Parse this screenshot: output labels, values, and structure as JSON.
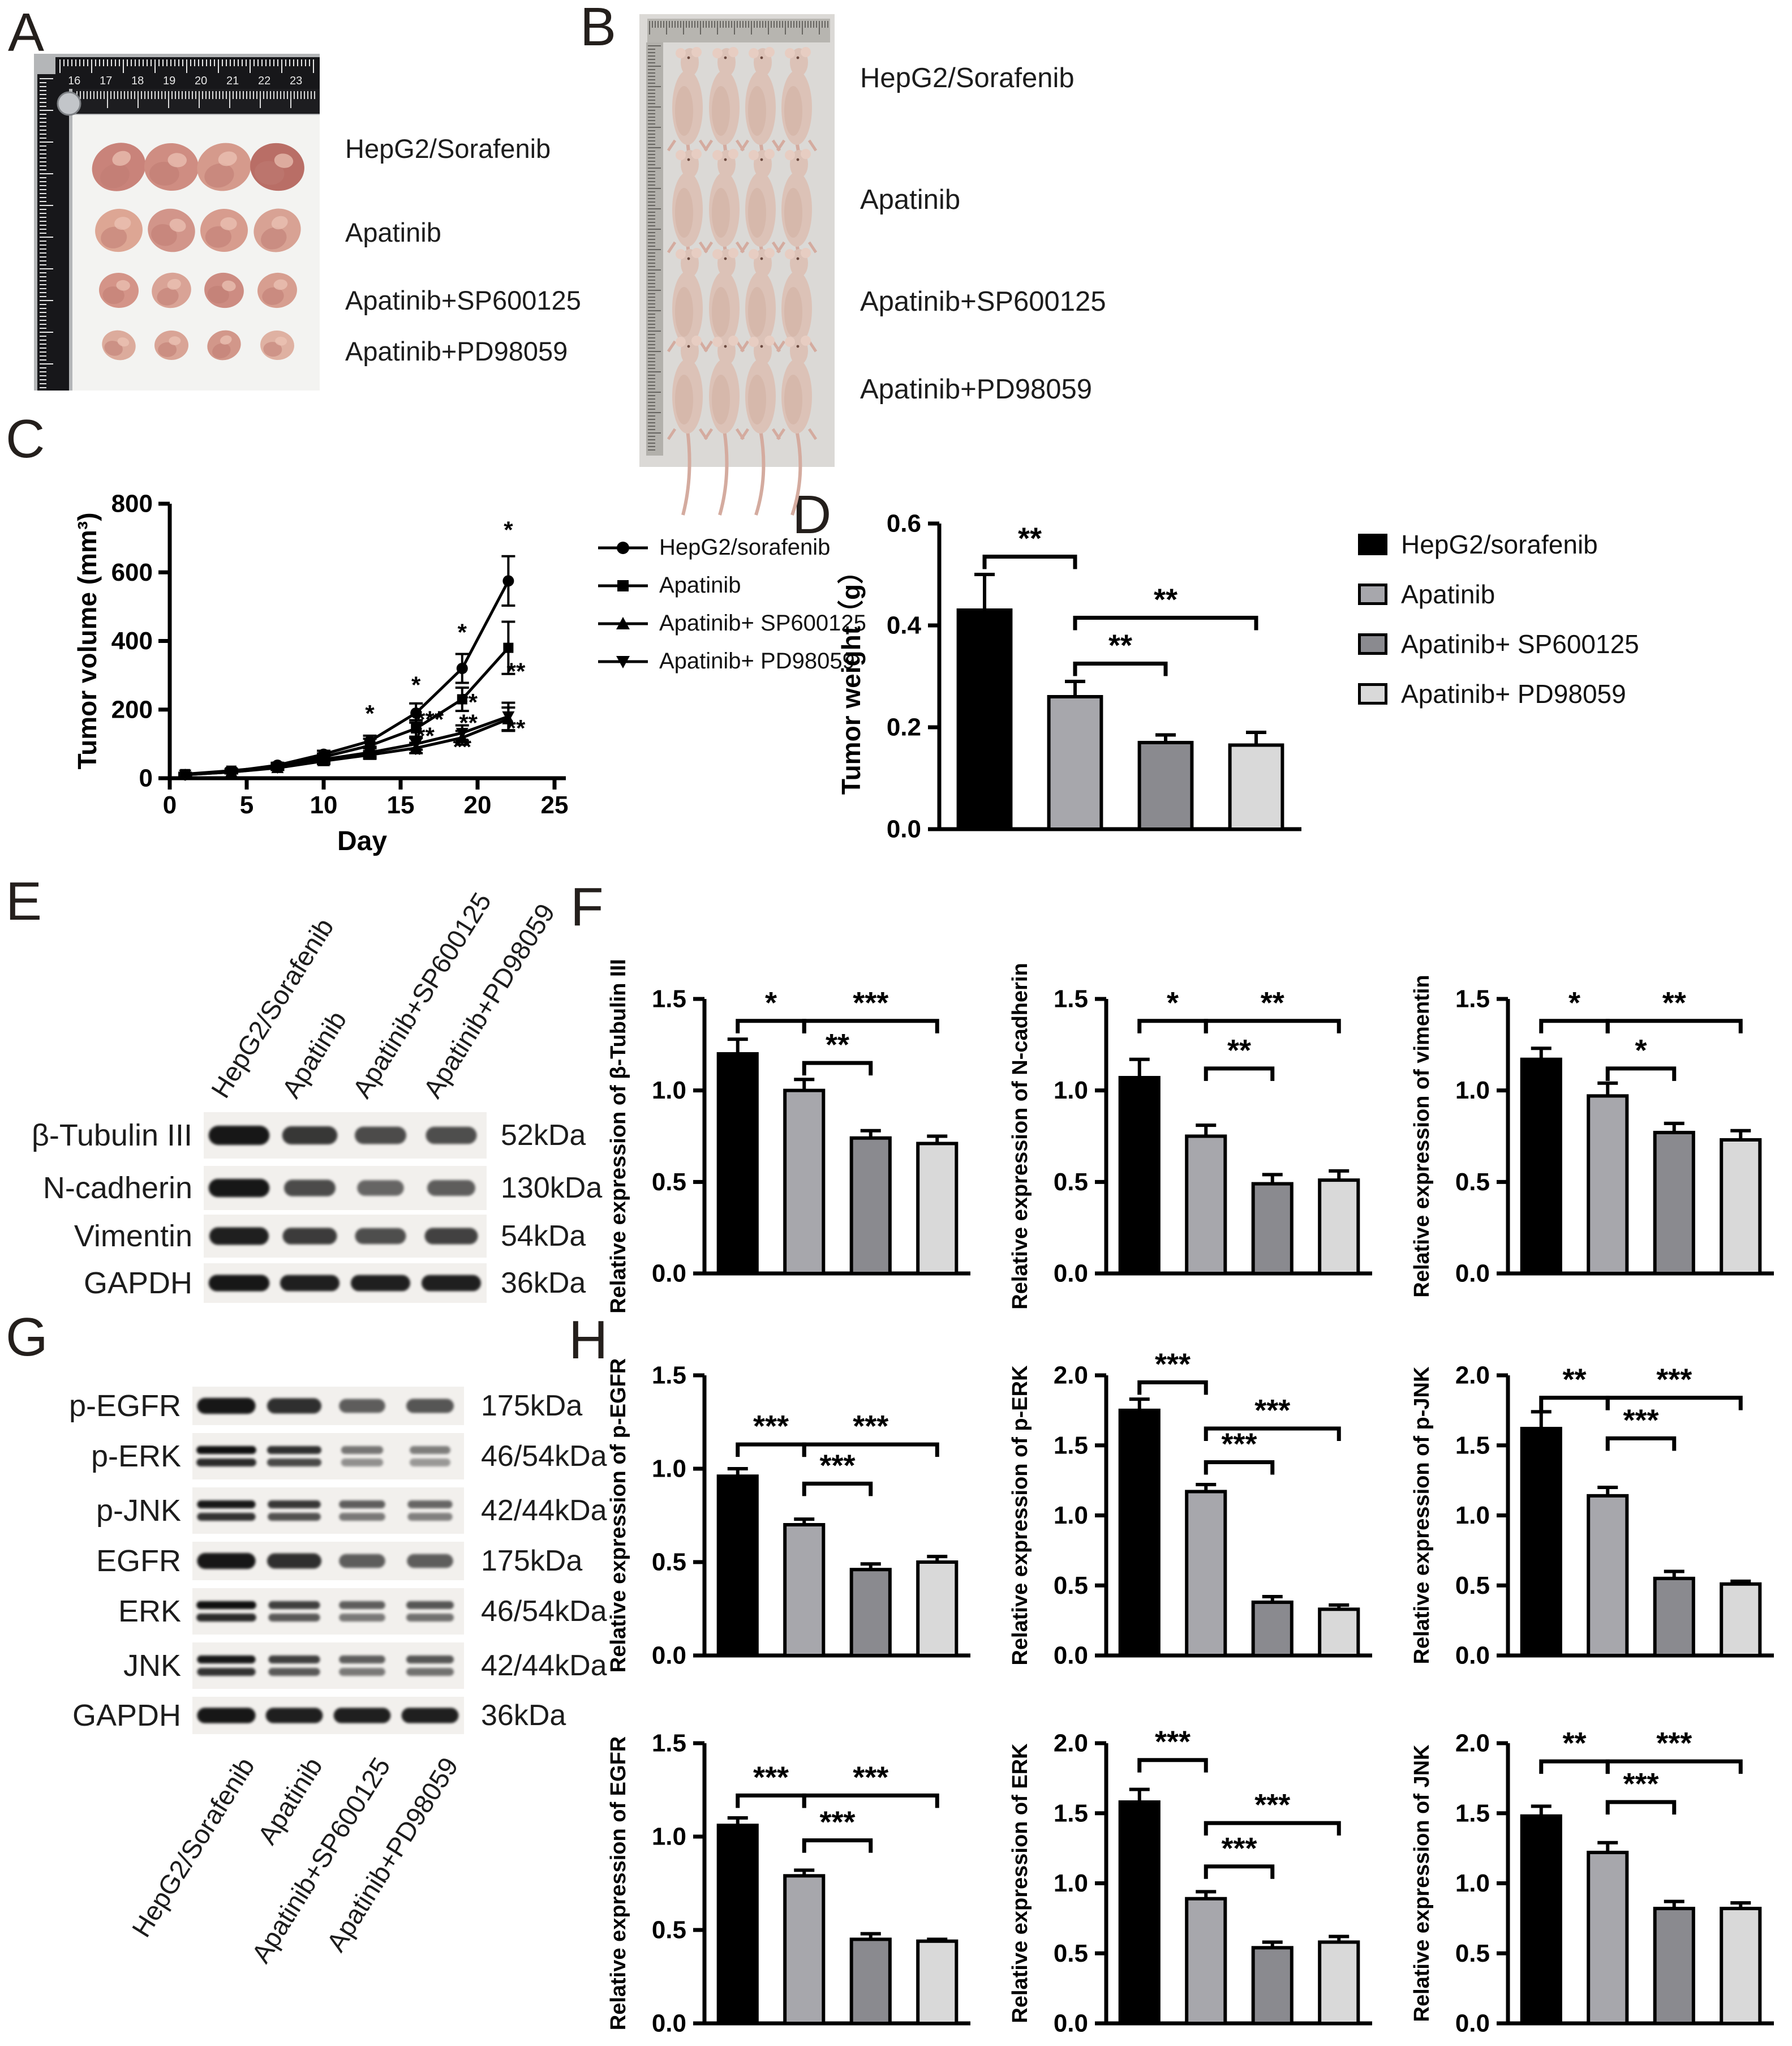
{
  "figure_colors": {
    "group_fills": [
      "#000000",
      "#a7a7ac",
      "#8a8a8f",
      "#d9d9d9"
    ],
    "axis": "#000000",
    "tumor_fill": "#d79a8c",
    "mouse_fill": "#dcc2b7"
  },
  "panels": {
    "A": {
      "label": "A",
      "type": "photo-tumors",
      "groups": [
        "HepG2/Sorafenib",
        "Apatinib",
        "Apatinib+SP600125",
        "Apatinib+PD98059"
      ]
    },
    "B": {
      "label": "B",
      "type": "photo-mice",
      "groups": [
        "HepG2/Sorafenib",
        "Apatinib",
        "Apatinib+SP600125",
        "Apatinib+PD98059"
      ]
    },
    "C": {
      "label": "C"
    },
    "D": {
      "label": "D",
      "legend": [
        "HepG2/sorafenib",
        "Apatinib",
        "Apatinib+ SP600125",
        "Apatinib+ PD98059"
      ]
    },
    "E": {
      "label": "E",
      "lanes": [
        "HepG2/Sorafenib",
        "Apatinib",
        "Apatinib+SP600125",
        "Apatinib+PD98059"
      ],
      "rows": [
        {
          "name": "β-Tubulin III",
          "kda": "52kDa",
          "intensities": [
            0.95,
            0.75,
            0.62,
            0.6
          ],
          "double": false
        },
        {
          "name": "N-cadherin",
          "kda": "130kDa",
          "intensities": [
            0.95,
            0.62,
            0.45,
            0.5
          ],
          "double": false
        },
        {
          "name": "Vimentin",
          "kda": "54kDa",
          "intensities": [
            0.9,
            0.72,
            0.6,
            0.68
          ],
          "double": false
        },
        {
          "name": "GAPDH",
          "kda": "36kDa",
          "intensities": [
            0.95,
            0.9,
            0.9,
            0.9
          ],
          "double": false
        }
      ]
    },
    "F": {
      "label": "F"
    },
    "G": {
      "label": "G",
      "lanes": [
        "HepG2/Sorafenib",
        "Apatinib",
        "Apatinib+SP600125",
        "Apatinib+PD98059"
      ],
      "rows": [
        {
          "name": "p-EGFR",
          "kda": "175kDa",
          "intensities": [
            0.95,
            0.8,
            0.5,
            0.55
          ],
          "double": false
        },
        {
          "name": "p-ERK",
          "kda": "46/54kDa",
          "intensities": [
            1.0,
            0.8,
            0.35,
            0.3
          ],
          "double": true
        },
        {
          "name": "p-JNK",
          "kda": "42/44kDa",
          "intensities": [
            0.95,
            0.75,
            0.5,
            0.45
          ],
          "double": true
        },
        {
          "name": "EGFR",
          "kda": "175kDa",
          "intensities": [
            0.95,
            0.8,
            0.5,
            0.5
          ],
          "double": false
        },
        {
          "name": "ERK",
          "kda": "46/54kDa",
          "intensities": [
            1.0,
            0.7,
            0.5,
            0.55
          ],
          "double": true
        },
        {
          "name": "JNK",
          "kda": "42/44kDa",
          "intensities": [
            0.95,
            0.7,
            0.5,
            0.55
          ],
          "double": true
        },
        {
          "name": "GAPDH",
          "kda": "36kDa",
          "intensities": [
            0.95,
            0.9,
            0.9,
            0.9
          ],
          "double": false
        }
      ]
    },
    "H": {
      "label": "H"
    }
  },
  "chart_data": [
    {
      "id": "C",
      "type": "line",
      "xlabel": "Day",
      "ylabel": "Tumor volume (mm³)",
      "x": [
        1,
        4,
        7,
        10,
        13,
        16,
        19,
        22
      ],
      "xlim": [
        0,
        25
      ],
      "ylim": [
        0,
        800
      ],
      "xticks": [
        0,
        5,
        10,
        15,
        20,
        25
      ],
      "yticks": [
        0,
        200,
        400,
        600,
        800
      ],
      "legend_position": "right",
      "series": [
        {
          "name": "HepG2/sorafenib",
          "marker": "circle",
          "values": [
            10,
            20,
            38,
            70,
            108,
            190,
            320,
            575
          ],
          "errors": [
            4,
            5,
            7,
            10,
            16,
            28,
            42,
            72
          ]
        },
        {
          "name": "Apatinib",
          "marker": "square",
          "values": [
            12,
            22,
            34,
            62,
            95,
            145,
            230,
            380
          ],
          "errors": [
            4,
            5,
            7,
            10,
            20,
            24,
            34,
            76
          ]
        },
        {
          "name": "Apatinib+ SP600125",
          "marker": "triangle-up",
          "values": [
            10,
            18,
            30,
            50,
            68,
            88,
            118,
            172
          ],
          "errors": [
            3,
            4,
            6,
            9,
            11,
            15,
            20,
            34
          ]
        },
        {
          "name": "Apatinib+ PD98059",
          "marker": "triangle-down",
          "values": [
            10,
            18,
            31,
            55,
            75,
            100,
            132,
            180
          ],
          "errors": [
            3,
            4,
            6,
            9,
            12,
            17,
            22,
            40
          ]
        }
      ],
      "annotations": [
        {
          "x": 13,
          "y": 165,
          "text": "*"
        },
        {
          "x": 16,
          "y": 248,
          "text": "*"
        },
        {
          "x": 16.1,
          "y": 45,
          "text": "*"
        },
        {
          "x": 16.9,
          "y": 148,
          "text": "***"
        },
        {
          "x": 16.6,
          "y": 100,
          "text": "**"
        },
        {
          "x": 19,
          "y": 402,
          "text": "*"
        },
        {
          "x": 19.4,
          "y": 198,
          "text": "**"
        },
        {
          "x": 19.4,
          "y": 138,
          "text": "**"
        },
        {
          "x": 19,
          "y": 68,
          "text": "**"
        },
        {
          "x": 22,
          "y": 700,
          "text": "*"
        },
        {
          "x": 22.5,
          "y": 288,
          "text": "**"
        },
        {
          "x": 22.5,
          "y": 122,
          "text": "**"
        }
      ]
    },
    {
      "id": "D",
      "type": "bar",
      "ylabel": "Tumor weight（g）",
      "categories": [
        "HepG2/sorafenib",
        "Apatinib",
        "Apatinib+ SP600125",
        "Apatinib+ PD98059"
      ],
      "values": [
        0.43,
        0.26,
        0.17,
        0.165
      ],
      "errors": [
        0.07,
        0.03,
        0.015,
        0.025
      ],
      "ylim": [
        0,
        0.6
      ],
      "yticks": [
        0,
        0.2,
        0.4,
        0.6
      ],
      "significance": [
        {
          "a": 0,
          "b": 1,
          "y": 0.535,
          "label": "**"
        },
        {
          "a": 1,
          "b": 3,
          "y": 0.415,
          "label": "**"
        },
        {
          "a": 1,
          "b": 2,
          "y": 0.325,
          "label": "**"
        }
      ]
    },
    {
      "id": "F1",
      "type": "bar",
      "ylabel": "Relative expression of β-Tubulin III",
      "categories": [
        "HepG2/sorafenib",
        "Apatinib",
        "Apatinib+ SP600125",
        "Apatinib+ PD98059"
      ],
      "values": [
        1.2,
        1.0,
        0.74,
        0.71
      ],
      "errors": [
        0.08,
        0.06,
        0.04,
        0.04
      ],
      "ylim": [
        0,
        1.5
      ],
      "yticks": [
        0,
        0.5,
        1.0,
        1.5
      ],
      "significance": [
        {
          "a": 0,
          "b": 1,
          "y": 1.38,
          "label": "*"
        },
        {
          "a": 1,
          "b": 3,
          "y": 1.38,
          "label": "***"
        },
        {
          "a": 1,
          "b": 2,
          "y": 1.15,
          "label": "**"
        }
      ]
    },
    {
      "id": "F2",
      "type": "bar",
      "ylabel": "Relative expression of N-cadherin",
      "categories": [
        "HepG2/sorafenib",
        "Apatinib",
        "Apatinib+ SP600125",
        "Apatinib+ PD98059"
      ],
      "values": [
        1.07,
        0.75,
        0.49,
        0.51
      ],
      "errors": [
        0.1,
        0.06,
        0.05,
        0.05
      ],
      "ylim": [
        0,
        1.5
      ],
      "yticks": [
        0,
        0.5,
        1.0,
        1.5
      ],
      "significance": [
        {
          "a": 0,
          "b": 1,
          "y": 1.38,
          "label": "*"
        },
        {
          "a": 1,
          "b": 3,
          "y": 1.38,
          "label": "**"
        },
        {
          "a": 1,
          "b": 2,
          "y": 1.12,
          "label": "**"
        }
      ]
    },
    {
      "id": "F3",
      "type": "bar",
      "ylabel": "Relative expression of vimentin",
      "categories": [
        "HepG2/sorafenib",
        "Apatinib",
        "Apatinib+ SP600125",
        "Apatinib+ PD98059"
      ],
      "values": [
        1.17,
        0.97,
        0.77,
        0.73
      ],
      "errors": [
        0.06,
        0.07,
        0.05,
        0.05
      ],
      "ylim": [
        0,
        1.5
      ],
      "yticks": [
        0,
        0.5,
        1.0,
        1.5
      ],
      "significance": [
        {
          "a": 0,
          "b": 1,
          "y": 1.38,
          "label": "*"
        },
        {
          "a": 1,
          "b": 3,
          "y": 1.38,
          "label": "**"
        },
        {
          "a": 1,
          "b": 2,
          "y": 1.12,
          "label": "*"
        }
      ]
    },
    {
      "id": "H1",
      "type": "bar",
      "ylabel": "Relative expression of p-EGFR",
      "categories": [
        "HepG2/sorafenib",
        "Apatinib",
        "Apatinib+ SP600125",
        "Apatinib+ PD98059"
      ],
      "values": [
        0.96,
        0.7,
        0.46,
        0.5
      ],
      "errors": [
        0.04,
        0.03,
        0.03,
        0.03
      ],
      "ylim": [
        0,
        1.5
      ],
      "yticks": [
        0,
        0.5,
        1.0,
        1.5
      ],
      "significance": [
        {
          "a": 0,
          "b": 1,
          "y": 1.13,
          "label": "***"
        },
        {
          "a": 1,
          "b": 3,
          "y": 1.13,
          "label": "***"
        },
        {
          "a": 1,
          "b": 2,
          "y": 0.92,
          "label": "***"
        }
      ]
    },
    {
      "id": "H2",
      "type": "bar",
      "ylabel": "Relative expression of p-ERK",
      "categories": [
        "HepG2/sorafenib",
        "Apatinib",
        "Apatinib+ SP600125",
        "Apatinib+ PD98059"
      ],
      "values": [
        1.75,
        1.17,
        0.38,
        0.33
      ],
      "errors": [
        0.08,
        0.05,
        0.04,
        0.03
      ],
      "ylim": [
        0,
        2.0
      ],
      "yticks": [
        0,
        0.5,
        1.0,
        1.5,
        2.0
      ],
      "significance": [
        {
          "a": 0,
          "b": 1,
          "y": 1.95,
          "label": "***"
        },
        {
          "a": 1,
          "b": 3,
          "y": 1.62,
          "label": "***"
        },
        {
          "a": 1,
          "b": 2,
          "y": 1.38,
          "label": "***"
        }
      ]
    },
    {
      "id": "H3",
      "type": "bar",
      "ylabel": "Relative expression of p-JNK",
      "categories": [
        "HepG2/sorafenib",
        "Apatinib",
        "Apatinib+ SP600125",
        "Apatinib+ PD98059"
      ],
      "values": [
        1.62,
        1.14,
        0.55,
        0.51
      ],
      "errors": [
        0.12,
        0.06,
        0.05,
        0.02
      ],
      "ylim": [
        0,
        2.0
      ],
      "yticks": [
        0,
        0.5,
        1.0,
        1.5,
        2.0
      ],
      "significance": [
        {
          "a": 0,
          "b": 1,
          "y": 1.84,
          "label": "**"
        },
        {
          "a": 1,
          "b": 3,
          "y": 1.84,
          "label": "***"
        },
        {
          "a": 1,
          "b": 2,
          "y": 1.55,
          "label": "***"
        }
      ]
    },
    {
      "id": "H4",
      "type": "bar",
      "ylabel": "Relative expression of EGFR",
      "categories": [
        "HepG2/sorafenib",
        "Apatinib",
        "Apatinib+ SP600125",
        "Apatinib+ PD98059"
      ],
      "values": [
        1.06,
        0.79,
        0.45,
        0.44
      ],
      "errors": [
        0.04,
        0.03,
        0.03,
        0.01
      ],
      "ylim": [
        0,
        1.5
      ],
      "yticks": [
        0,
        0.5,
        1.0,
        1.5
      ],
      "significance": [
        {
          "a": 0,
          "b": 1,
          "y": 1.22,
          "label": "***"
        },
        {
          "a": 1,
          "b": 3,
          "y": 1.22,
          "label": "***"
        },
        {
          "a": 1,
          "b": 2,
          "y": 0.98,
          "label": "***"
        }
      ]
    },
    {
      "id": "H5",
      "type": "bar",
      "ylabel": "Relative expression of ERK",
      "categories": [
        "HepG2/sorafenib",
        "Apatinib",
        "Apatinib+ SP600125",
        "Apatinib+ PD98059"
      ],
      "values": [
        1.58,
        0.89,
        0.54,
        0.58
      ],
      "errors": [
        0.09,
        0.05,
        0.04,
        0.04
      ],
      "ylim": [
        0,
        2.0
      ],
      "yticks": [
        0,
        0.5,
        1.0,
        1.5,
        2.0
      ],
      "significance": [
        {
          "a": 0,
          "b": 1,
          "y": 1.88,
          "label": "***"
        },
        {
          "a": 1,
          "b": 3,
          "y": 1.43,
          "label": "***"
        },
        {
          "a": 1,
          "b": 2,
          "y": 1.12,
          "label": "***"
        }
      ]
    },
    {
      "id": "H6",
      "type": "bar",
      "ylabel": "Relative expression of JNK",
      "categories": [
        "HepG2/sorafenib",
        "Apatinib",
        "Apatinib+ SP600125",
        "Apatinib+ PD98059"
      ],
      "values": [
        1.48,
        1.22,
        0.82,
        0.82
      ],
      "errors": [
        0.07,
        0.07,
        0.05,
        0.04
      ],
      "ylim": [
        0,
        2.0
      ],
      "yticks": [
        0,
        0.5,
        1.0,
        1.5,
        2.0
      ],
      "significance": [
        {
          "a": 0,
          "b": 1,
          "y": 1.87,
          "label": "**"
        },
        {
          "a": 1,
          "b": 3,
          "y": 1.87,
          "label": "***"
        },
        {
          "a": 1,
          "b": 2,
          "y": 1.58,
          "label": "***"
        }
      ]
    }
  ]
}
